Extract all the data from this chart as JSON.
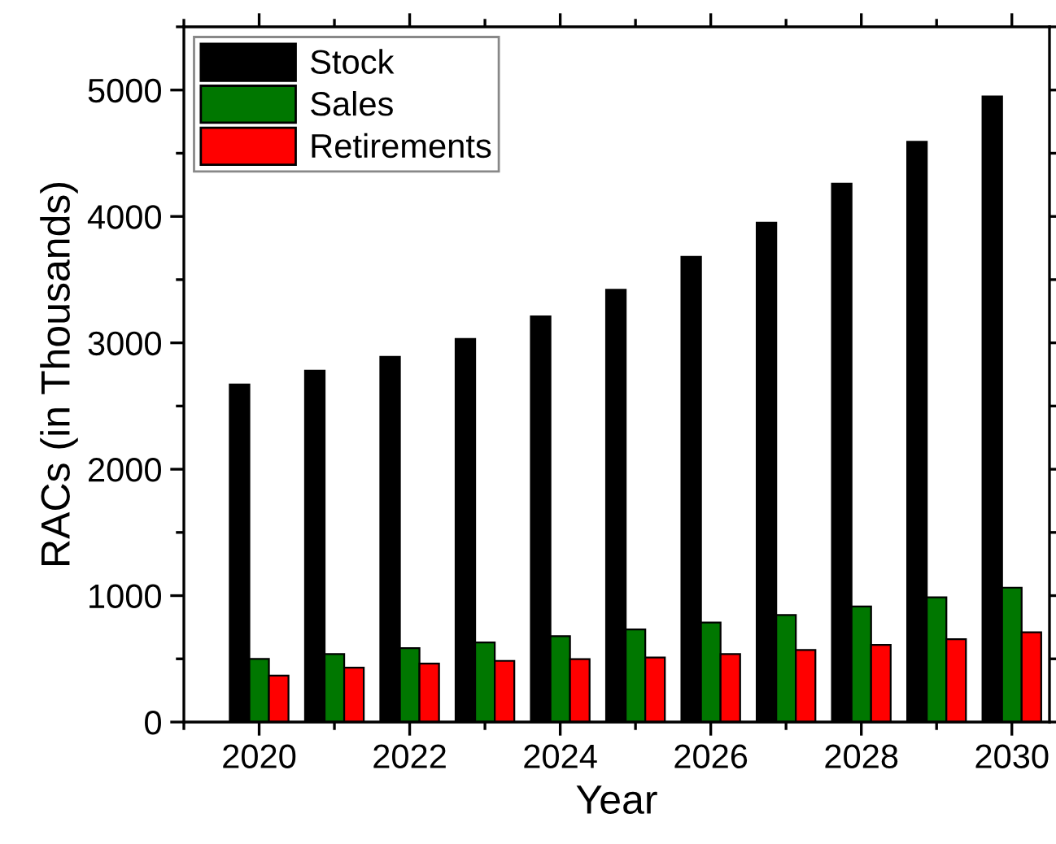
{
  "chart_data": {
    "type": "bar",
    "xlabel": "Year",
    "ylabel": "RACs (in Thousands)",
    "x": [
      2020,
      2021,
      2022,
      2023,
      2024,
      2025,
      2026,
      2027,
      2028,
      2029,
      2030
    ],
    "series": [
      {
        "name": "Stock",
        "color": "#000000",
        "values": [
          2670,
          2780,
          2890,
          3030,
          3210,
          3420,
          3680,
          3950,
          4260,
          4590,
          4950
        ]
      },
      {
        "name": "Sales",
        "color": "#007700",
        "values": [
          500,
          538,
          584,
          629,
          679,
          733,
          787,
          846,
          914,
          986,
          1063
        ]
      },
      {
        "name": "Retirements",
        "color": "#ff0000",
        "values": [
          367,
          430,
          462,
          484,
          498,
          511,
          538,
          570,
          611,
          656,
          710
        ]
      }
    ],
    "xlim": [
      2019,
      2030.5
    ],
    "xticks": [
      2020,
      2022,
      2024,
      2026,
      2028,
      2030
    ],
    "ylim": [
      0,
      5500
    ],
    "yticks": [
      0,
      1000,
      2000,
      3000,
      4000,
      5000
    ],
    "grid": false,
    "legend": "top left"
  }
}
